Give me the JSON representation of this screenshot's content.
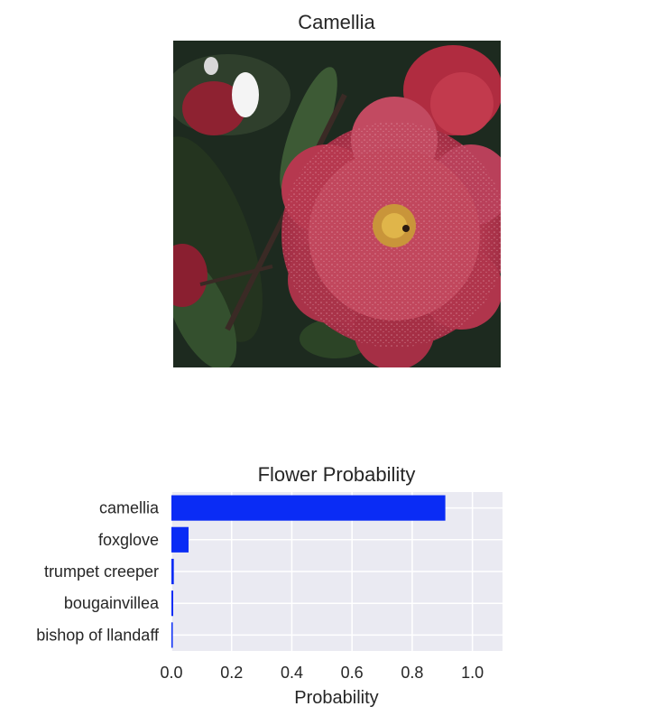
{
  "photo_panel": {
    "title": "Camellia"
  },
  "chart_data": {
    "type": "bar",
    "orientation": "horizontal",
    "title": "Flower Probability",
    "xlabel": "Probability",
    "ylabel": "",
    "categories": [
      "camellia",
      "foxglove",
      "trumpet creeper",
      "bougainvillea",
      "bishop of llandaff"
    ],
    "values": [
      0.91,
      0.057,
      0.008,
      0.006,
      0.003
    ],
    "xlim": [
      0.0,
      1.1
    ],
    "xticks": [
      0.0,
      0.2,
      0.4,
      0.6,
      0.8,
      1.0
    ],
    "xtick_labels": [
      "0.0",
      "0.2",
      "0.4",
      "0.6",
      "0.8",
      "1.0"
    ],
    "grid": true,
    "bar_color": "#0a2cf5",
    "background_color": "#eaeaf2"
  }
}
